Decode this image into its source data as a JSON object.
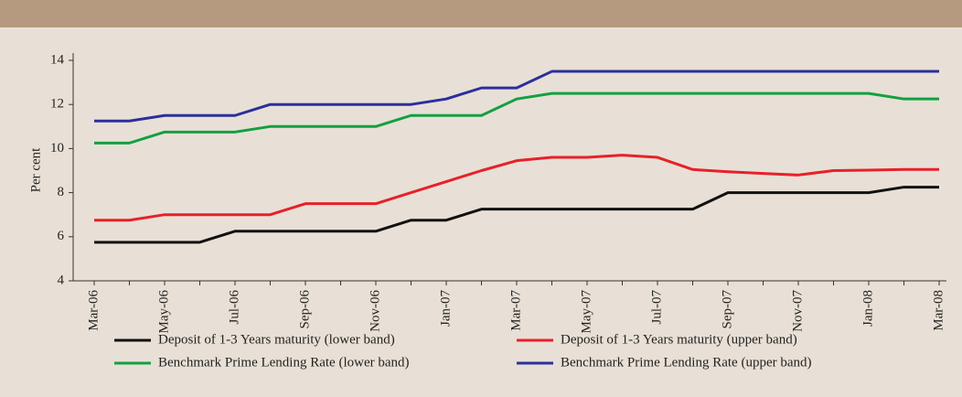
{
  "chart_data": {
    "type": "line",
    "y_label": "Per cent",
    "categories": [
      "Mar-06",
      null,
      "May-06",
      null,
      "Jul-06",
      null,
      "Sep-06",
      null,
      "Nov-06",
      null,
      "Jan-07",
      null,
      "Mar-07",
      null,
      "May-07",
      null,
      "Jul-07",
      null,
      "Sep-07",
      null,
      "Nov-07",
      null,
      "Jan-08",
      null,
      "Mar-08"
    ],
    "series": [
      {
        "name": "Deposit of 1-3 Years maturity (lower band)",
        "color": "#111111",
        "values": [
          5.75,
          5.75,
          5.75,
          5.75,
          6.25,
          6.25,
          6.25,
          6.25,
          6.25,
          6.75,
          6.75,
          7.25,
          7.25,
          7.25,
          7.25,
          7.25,
          7.25,
          7.25,
          8.0,
          8.0,
          8.0,
          8.0,
          8.0,
          8.25,
          8.25
        ]
      },
      {
        "name": "Deposit of 1-3 Years maturity (upper band)",
        "color": "#e8202a",
        "values": [
          6.75,
          6.75,
          7.0,
          7.0,
          7.0,
          7.0,
          7.5,
          7.5,
          7.5,
          8.0,
          8.5,
          9.0,
          9.45,
          9.6,
          9.6,
          9.7,
          9.6,
          9.05,
          8.95,
          8.87,
          8.8,
          9.0,
          9.02,
          9.05,
          9.05
        ]
      },
      {
        "name": "Benchmark Prime Lending Rate (lower band)",
        "color": "#13a040",
        "values": [
          10.25,
          10.25,
          10.75,
          10.75,
          10.75,
          11.0,
          11.0,
          11.0,
          11.0,
          11.5,
          11.5,
          11.5,
          12.25,
          12.5,
          12.5,
          12.5,
          12.5,
          12.5,
          12.5,
          12.5,
          12.5,
          12.5,
          12.5,
          12.25,
          12.25
        ]
      },
      {
        "name": "Benchmark Prime Lending Rate (upper band)",
        "color": "#2b2f9e",
        "values": [
          11.25,
          11.25,
          11.5,
          11.5,
          11.5,
          12.0,
          12.0,
          12.0,
          12.0,
          12.0,
          12.25,
          12.75,
          12.75,
          13.5,
          13.5,
          13.5,
          13.5,
          13.5,
          13.5,
          13.5,
          13.5,
          13.5,
          13.5,
          13.5,
          13.5
        ]
      }
    ],
    "ylim": [
      4,
      14
    ],
    "yticks": [
      4,
      6,
      8,
      10,
      12,
      14
    ]
  }
}
